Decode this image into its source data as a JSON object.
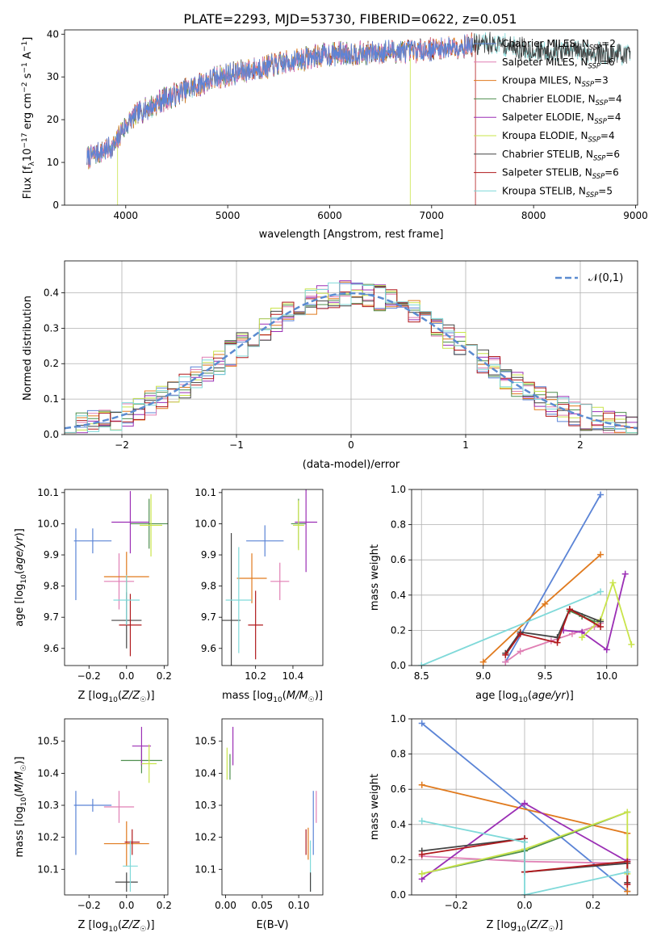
{
  "figure_title": "PLATE=2293, MJD=53730, FIBERID=0622, z=0.051",
  "colors": {
    "Chabrier MILES": "#5b84d6",
    "Salpeter MILES": "#e07fb4",
    "Kroupa MILES": "#e07a1e",
    "Chabrier ELODIE": "#4f8f4f",
    "Salpeter ELODIE": "#9b2fb5",
    "Kroupa ELODIE": "#c9e44a",
    "Chabrier STELIB": "#444444",
    "Salpeter STELIB": "#b0191c",
    "Kroupa STELIB": "#7fd9d9",
    "normal": "#5b8bd0"
  },
  "chart_data": [
    {
      "id": "spectrum",
      "type": "line",
      "xlabel": "wavelength [Angstrom, rest frame]",
      "ylabel": "Flux [f_λ10^-17 erg cm^-2 s^-1 A^-1]",
      "xlim": [
        3400,
        9020
      ],
      "ylim": [
        0,
        41
      ],
      "xticks": [
        4000,
        5000,
        6000,
        7000,
        8000,
        9000
      ],
      "yticks": [
        0,
        10,
        20,
        30,
        40
      ],
      "legend_position": "upper-right",
      "legend": [
        {
          "label": "Chabrier MILES, N_SSP=2",
          "model": "Chabrier MILES"
        },
        {
          "label": "Salpeter MILES, N_SSP=6",
          "model": "Salpeter MILES"
        },
        {
          "label": "Kroupa MILES, N_SSP=3",
          "model": "Kroupa MILES"
        },
        {
          "label": "Chabrier ELODIE, N_SSP=4",
          "model": "Chabrier ELODIE"
        },
        {
          "label": "Salpeter ELODIE, N_SSP=4",
          "model": "Salpeter ELODIE"
        },
        {
          "label": "Kroupa ELODIE, N_SSP=4",
          "model": "Kroupa ELODIE"
        },
        {
          "label": "Chabrier STELIB, N_SSP=6",
          "model": "Chabrier STELIB"
        },
        {
          "label": "Salpeter STELIB, N_SSP=6",
          "model": "Salpeter STELIB"
        },
        {
          "label": "Kroupa STELIB, N_SSP=5",
          "model": "Kroupa STELIB"
        }
      ],
      "continuum": [
        [
          3620,
          11
        ],
        [
          3700,
          12
        ],
        [
          3800,
          13
        ],
        [
          3900,
          14
        ],
        [
          3950,
          17
        ],
        [
          4050,
          20
        ],
        [
          4150,
          22
        ],
        [
          4250,
          23
        ],
        [
          4350,
          24.5
        ],
        [
          4500,
          26
        ],
        [
          4700,
          28
        ],
        [
          4900,
          30
        ],
        [
          5100,
          31
        ],
        [
          5300,
          32
        ],
        [
          5500,
          33
        ],
        [
          5700,
          34
        ],
        [
          5900,
          35
        ],
        [
          6100,
          35.5
        ],
        [
          6300,
          35.5
        ],
        [
          6600,
          36
        ],
        [
          6800,
          36
        ],
        [
          7000,
          36.5
        ],
        [
          7200,
          37
        ],
        [
          7400,
          37.5
        ],
        [
          7600,
          38
        ],
        [
          7800,
          37
        ],
        [
          8000,
          36
        ],
        [
          8200,
          36
        ],
        [
          8400,
          36
        ],
        [
          8600,
          35.5
        ],
        [
          8800,
          35.5
        ],
        [
          8950,
          35
        ]
      ],
      "series_ranges": [
        {
          "model": "Chabrier MILES",
          "x": [
            3620,
            7400
          ]
        },
        {
          "model": "Salpeter MILES",
          "x": [
            3620,
            7400
          ]
        },
        {
          "model": "Kroupa MILES",
          "x": [
            3620,
            7400
          ]
        },
        {
          "model": "Chabrier ELODIE",
          "x": [
            3620,
            6800
          ]
        },
        {
          "model": "Salpeter ELODIE",
          "x": [
            3620,
            6800
          ]
        },
        {
          "model": "Kroupa ELODIE",
          "x": [
            3620,
            6800
          ]
        },
        {
          "model": "Chabrier STELIB",
          "x": [
            3620,
            8950
          ]
        },
        {
          "model": "Salpeter STELIB",
          "x": [
            3620,
            7400
          ]
        },
        {
          "model": "Kroupa STELIB",
          "x": [
            3620,
            8950
          ]
        }
      ],
      "drops": [
        {
          "model": "Kroupa ELODIE",
          "x": 3920,
          "y": 0
        },
        {
          "model": "Kroupa ELODIE",
          "x": 6790,
          "y": 0
        },
        {
          "model": "Salpeter STELIB",
          "x": 7430,
          "y": 0
        }
      ]
    },
    {
      "id": "residuals",
      "type": "histogram",
      "xlabel": "(data-model)/error",
      "ylabel": "Normed distribution",
      "xlim": [
        -2.5,
        2.5
      ],
      "ylim": [
        0,
        0.49
      ],
      "xticks": [
        -2,
        -1,
        0,
        1,
        2
      ],
      "yticks": [
        0.0,
        0.1,
        0.2,
        0.3,
        0.4
      ],
      "grid": true,
      "bin_width": 0.1,
      "legend_position": "upper-right",
      "legend": [
        {
          "label": "𝒩(0,1)",
          "style": "dashed"
        }
      ],
      "normal_curve": {
        "mean": 0,
        "sigma": 1
      },
      "models": [
        "Chabrier MILES",
        "Salpeter MILES",
        "Kroupa MILES",
        "Chabrier ELODIE",
        "Salpeter ELODIE",
        "Kroupa ELODIE",
        "Chabrier STELIB",
        "Salpeter STELIB",
        "Kroupa STELIB"
      ]
    },
    {
      "id": "age-vs-Z",
      "type": "errorbar",
      "xlabel": "Z [log10(Z/Z☉)]",
      "ylabel": "age  [log10(age/yr)]",
      "xlim": [
        -0.33,
        0.22
      ],
      "ylim": [
        9.545,
        10.11
      ],
      "xticks": [
        -0.2,
        0.0,
        0.2
      ],
      "yticks": [
        9.6,
        9.7,
        9.8,
        9.9,
        10.0,
        10.1
      ],
      "points": [
        {
          "model": "Chabrier MILES",
          "x": -0.18,
          "y": 9.945,
          "xerr": 0.1,
          "yerr": 0.04
        },
        {
          "model": "Chabrier MILES",
          "x": -0.27,
          "y": 9.87,
          "xerr": 0,
          "yerr": 0.115
        },
        {
          "model": "Salpeter MILES",
          "x": -0.04,
          "y": 9.815,
          "xerr": 0.08,
          "yerr": 0.09
        },
        {
          "model": "Kroupa MILES",
          "x": 0.0,
          "y": 9.83,
          "xerr": 0.12,
          "yerr": 0.08
        },
        {
          "model": "Chabrier ELODIE",
          "x": 0.12,
          "y": 10.0,
          "xerr": 0.1,
          "yerr": 0.08
        },
        {
          "model": "Salpeter ELODIE",
          "x": 0.02,
          "y": 10.005,
          "xerr": 0.1,
          "yerr": 0.1
        },
        {
          "model": "Kroupa ELODIE",
          "x": 0.13,
          "y": 9.995,
          "xerr": 0.06,
          "yerr": 0.1
        },
        {
          "model": "Chabrier STELIB",
          "x": 0.0,
          "y": 9.69,
          "xerr": 0.08,
          "yerr": 0.09
        },
        {
          "model": "Salpeter STELIB",
          "x": 0.02,
          "y": 9.675,
          "xerr": 0.06,
          "yerr": 0.1
        },
        {
          "model": "Kroupa STELIB",
          "x": 0.0,
          "y": 9.755,
          "xerr": 0.07,
          "yerr": 0.08
        }
      ]
    },
    {
      "id": "age-vs-mass",
      "type": "errorbar",
      "xlabel": "mass [log10(M/M☉)]",
      "ylabel": "",
      "xlim": [
        10.02,
        10.56
      ],
      "ylim": [
        9.545,
        10.11
      ],
      "xticks": [
        10.2,
        10.4
      ],
      "yticks": [
        9.6,
        9.7,
        9.8,
        9.9,
        10.0,
        10.1
      ],
      "points": [
        {
          "model": "Chabrier MILES",
          "x": 10.25,
          "y": 9.945,
          "xerr": 0.1,
          "yerr": 0.05
        },
        {
          "model": "Salpeter MILES",
          "x": 10.33,
          "y": 9.815,
          "xerr": 0.05,
          "yerr": 0.06
        },
        {
          "model": "Kroupa MILES",
          "x": 10.18,
          "y": 9.825,
          "xerr": 0.08,
          "yerr": 0.08
        },
        {
          "model": "Chabrier ELODIE",
          "x": 10.43,
          "y": 10.0,
          "xerr": 0.04,
          "yerr": 0.08
        },
        {
          "model": "Salpeter ELODIE",
          "x": 10.47,
          "y": 10.005,
          "xerr": 0.06,
          "yerr": 0.16
        },
        {
          "model": "Kroupa ELODIE",
          "x": 10.43,
          "y": 9.995,
          "xerr": 0.03,
          "yerr": 0.08
        },
        {
          "model": "Chabrier STELIB",
          "x": 10.07,
          "y": 9.69,
          "xerr": 0.05,
          "yerr": 0.28
        },
        {
          "model": "Salpeter STELIB",
          "x": 10.2,
          "y": 9.675,
          "xerr": 0.04,
          "yerr": 0.11
        },
        {
          "model": "Kroupa STELIB",
          "x": 10.11,
          "y": 9.755,
          "xerr": 0.07,
          "yerr": 0.17
        }
      ]
    },
    {
      "id": "massweight-vs-age",
      "type": "line",
      "xlabel": "age  [log10(age/yr)]",
      "ylabel": "mass weight",
      "xlim": [
        8.42,
        10.25
      ],
      "ylim": [
        0,
        1.0
      ],
      "xticks": [
        8.5,
        9.0,
        9.5,
        10.0
      ],
      "yticks": [
        0.0,
        0.2,
        0.4,
        0.6,
        0.8,
        1.0
      ],
      "grid": true,
      "series": [
        {
          "model": "Chabrier MILES",
          "x": [
            9.18,
            9.95
          ],
          "y": [
            0.02,
            0.97
          ]
        },
        {
          "model": "Salpeter MILES",
          "x": [
            9.18,
            9.3,
            9.55,
            9.72,
            9.9,
            9.95
          ],
          "y": [
            0.02,
            0.08,
            0.14,
            0.18,
            0.22,
            0.24
          ]
        },
        {
          "model": "Kroupa MILES",
          "x": [
            9.0,
            9.5,
            9.95
          ],
          "y": [
            0.02,
            0.35,
            0.63
          ]
        },
        {
          "model": "Chabrier ELODIE",
          "x": [
            9.7,
            9.8,
            9.9
          ],
          "y": [
            0.31,
            0.28,
            0.25
          ]
        },
        {
          "model": "Salpeter ELODIE",
          "x": [
            9.65,
            9.8,
            10.0,
            10.15
          ],
          "y": [
            0.2,
            0.19,
            0.09,
            0.52
          ]
        },
        {
          "model": "Kroupa ELODIE",
          "x": [
            9.8,
            9.95,
            10.05,
            10.2
          ],
          "y": [
            0.16,
            0.26,
            0.47,
            0.12
          ]
        },
        {
          "model": "Chabrier STELIB",
          "x": [
            9.18,
            9.3,
            9.6,
            9.7,
            9.95
          ],
          "y": [
            0.07,
            0.19,
            0.16,
            0.32,
            0.25
          ]
        },
        {
          "model": "Salpeter STELIB",
          "x": [
            9.18,
            9.3,
            9.6,
            9.7,
            9.95
          ],
          "y": [
            0.06,
            0.18,
            0.13,
            0.32,
            0.22
          ]
        },
        {
          "model": "Kroupa STELIB",
          "x": [
            8.5,
            9.95
          ],
          "y": [
            0.0,
            0.42
          ]
        }
      ]
    },
    {
      "id": "mass-vs-Z",
      "type": "errorbar",
      "xlabel": "Z [log10(Z/Z☉)]",
      "ylabel": "mass [log10(M/M☉)]",
      "xlim": [
        -0.33,
        0.22
      ],
      "ylim": [
        10.02,
        10.57
      ],
      "xticks": [
        -0.2,
        0.0,
        0.2
      ],
      "yticks": [
        10.1,
        10.2,
        10.3,
        10.4,
        10.5
      ],
      "points": [
        {
          "model": "Chabrier MILES",
          "x": -0.18,
          "y": 10.3,
          "xerr": 0.1,
          "yerr": 0.02
        },
        {
          "model": "Chabrier MILES",
          "x": -0.27,
          "y": 10.245,
          "xerr": 0,
          "yerr": 0.1
        },
        {
          "model": "Salpeter MILES",
          "x": -0.04,
          "y": 10.295,
          "xerr": 0.08,
          "yerr": 0.05
        },
        {
          "model": "Kroupa MILES",
          "x": 0.0,
          "y": 10.18,
          "xerr": 0.12,
          "yerr": 0.07
        },
        {
          "model": "Chabrier ELODIE",
          "x": 0.08,
          "y": 10.44,
          "xerr": 0.11,
          "yerr": 0.04
        },
        {
          "model": "Salpeter ELODIE",
          "x": 0.08,
          "y": 10.485,
          "xerr": 0.05,
          "yerr": 0.06
        },
        {
          "model": "Kroupa ELODIE",
          "x": 0.12,
          "y": 10.43,
          "xerr": 0.04,
          "yerr": 0.06
        },
        {
          "model": "Chabrier STELIB",
          "x": 0.0,
          "y": 10.06,
          "xerr": 0.06,
          "yerr": 0.03
        },
        {
          "model": "Salpeter STELIB",
          "x": 0.03,
          "y": 10.185,
          "xerr": 0.04,
          "yerr": 0.04
        },
        {
          "model": "Kroupa STELIB",
          "x": 0.02,
          "y": 10.11,
          "xerr": 0.04,
          "yerr": 0.08
        }
      ]
    },
    {
      "id": "mass-vs-ebv",
      "type": "errorbar",
      "xlabel": "E(B-V)",
      "ylabel": "",
      "xlim": [
        -0.005,
        0.133
      ],
      "ylim": [
        10.02,
        10.57
      ],
      "xticks": [
        0.0,
        0.05,
        0.1
      ],
      "xtick_labels": [
        "0.00",
        "0.05",
        "0.10"
      ],
      "yticks": [
        10.1,
        10.2,
        10.3,
        10.4,
        10.5
      ],
      "points": [
        {
          "model": "Salpeter ELODIE",
          "x": 0.01,
          "y": 10.485,
          "xerr": 0,
          "yerr": 0.06
        },
        {
          "model": "Kroupa ELODIE",
          "x": 0.002,
          "y": 10.43,
          "xerr": 0,
          "yerr": 0.05
        },
        {
          "model": "Chabrier ELODIE",
          "x": 0.006,
          "y": 10.42,
          "xerr": 0,
          "yerr": 0.04
        },
        {
          "model": "Salpeter STELIB",
          "x": 0.11,
          "y": 10.185,
          "xerr": 0,
          "yerr": 0.04
        },
        {
          "model": "Kroupa MILES",
          "x": 0.113,
          "y": 10.18,
          "xerr": 0,
          "yerr": 0.05
        },
        {
          "model": "Kroupa STELIB",
          "x": 0.116,
          "y": 10.11,
          "xerr": 0,
          "yerr": 0.08
        },
        {
          "model": "Chabrier STELIB",
          "x": 0.116,
          "y": 10.06,
          "xerr": 0,
          "yerr": 0.03
        },
        {
          "model": "Chabrier MILES",
          "x": 0.12,
          "y": 10.245,
          "xerr": 0,
          "yerr": 0.1
        },
        {
          "model": "Salpeter MILES",
          "x": 0.124,
          "y": 10.295,
          "xerr": 0,
          "yerr": 0.05
        }
      ]
    },
    {
      "id": "massweight-vs-Z",
      "type": "line",
      "xlabel": "Z [log10(Z/Z☉)]",
      "ylabel": "mass weight",
      "xlim": [
        -0.33,
        0.33
      ],
      "ylim": [
        0,
        1.0
      ],
      "xticks": [
        -0.2,
        0.0,
        0.2
      ],
      "yticks": [
        0.0,
        0.2,
        0.4,
        0.6,
        0.8,
        1.0
      ],
      "grid": true,
      "series": [
        {
          "model": "Chabrier MILES",
          "x": [
            -0.3,
            0.3
          ],
          "y": [
            0.975,
            0.02
          ]
        },
        {
          "model": "Salpeter MILES",
          "x": [
            -0.3,
            0.0,
            0.3,
            0.3
          ],
          "y": [
            0.22,
            0.19,
            0.18,
            0.06
          ]
        },
        {
          "model": "Kroupa MILES",
          "x": [
            -0.3,
            0.3,
            0.3
          ],
          "y": [
            0.625,
            0.35,
            0.02
          ]
        },
        {
          "model": "Chabrier ELODIE",
          "x": [
            -0.3,
            0.0,
            0.3
          ],
          "y": [
            0.12,
            0.25,
            0.47
          ]
        },
        {
          "model": "Salpeter ELODIE",
          "x": [
            -0.3,
            0.0,
            0.3,
            0.3
          ],
          "y": [
            0.09,
            0.52,
            0.19,
            0.2
          ]
        },
        {
          "model": "Kroupa ELODIE",
          "x": [
            -0.3,
            0.0,
            0.3,
            0.3
          ],
          "y": [
            0.12,
            0.26,
            0.47,
            0.12
          ]
        },
        {
          "model": "Chabrier STELIB",
          "x": [
            -0.3,
            0.0,
            0.0,
            0.3,
            0.3
          ],
          "y": [
            0.25,
            0.32,
            0.13,
            0.18,
            0.07
          ]
        },
        {
          "model": "Salpeter STELIB",
          "x": [
            -0.3,
            0.0,
            0.0,
            0.3,
            0.3
          ],
          "y": [
            0.23,
            0.32,
            0.13,
            0.19,
            0.06
          ]
        },
        {
          "model": "Kroupa STELIB",
          "x": [
            -0.3,
            0.0,
            0.0,
            0.3
          ],
          "y": [
            0.42,
            0.3,
            0.0,
            0.13
          ]
        }
      ]
    }
  ]
}
